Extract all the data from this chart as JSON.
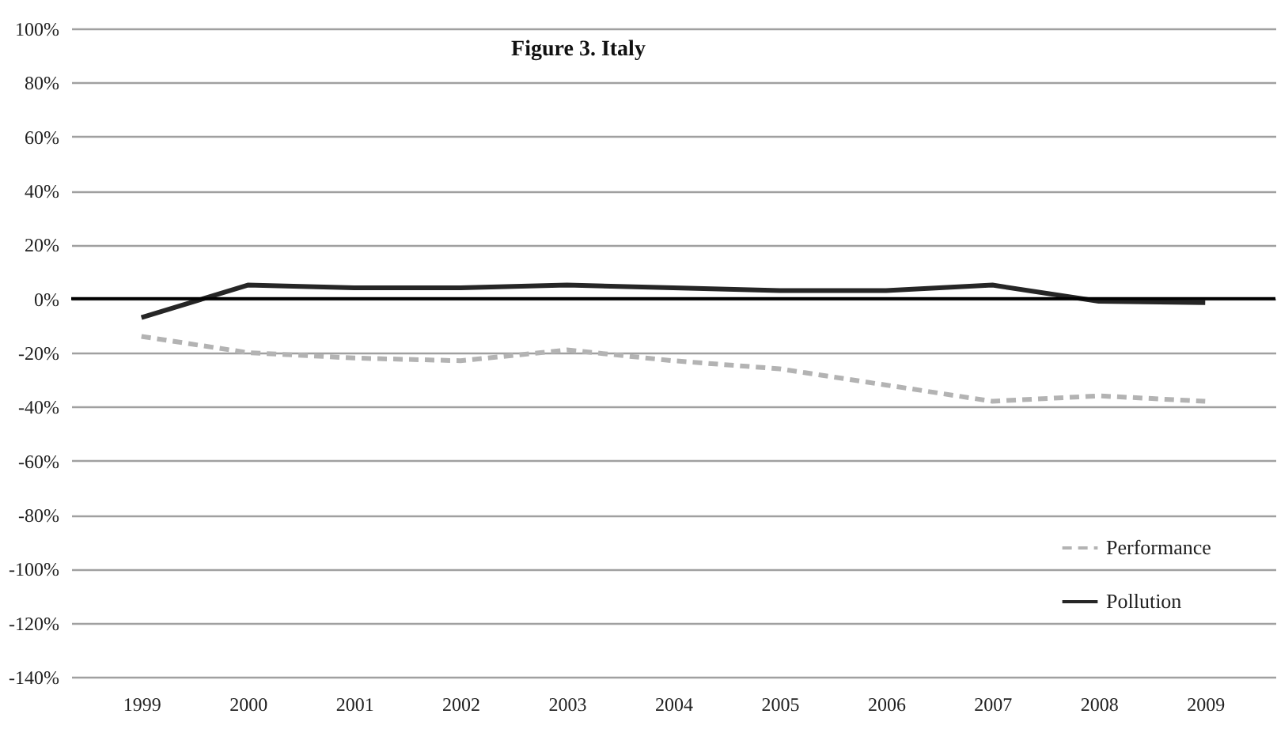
{
  "chart_data": {
    "type": "line",
    "title": "Figure 3. Italy",
    "categories": [
      "1999",
      "2000",
      "2001",
      "2002",
      "2003",
      "2004",
      "2005",
      "2006",
      "2007",
      "2008",
      "2009"
    ],
    "series": [
      {
        "name": "Performance",
        "color": "#b3b3b3",
        "line_style": "dashed",
        "values": [
          -14,
          -20,
          -22,
          -23,
          -19,
          -23,
          -26,
          -32,
          -38,
          -36,
          -38
        ]
      },
      {
        "name": "Pollution",
        "color": "#262626",
        "line_style": "solid",
        "values": [
          -7,
          5,
          4,
          4,
          5,
          4,
          3,
          3,
          5,
          -1,
          -1.5
        ]
      }
    ],
    "ylim": [
      -140,
      100
    ],
    "yticks": [
      {
        "value": -140,
        "label": "-140%"
      },
      {
        "value": -120,
        "label": "-120%"
      },
      {
        "value": -100,
        "label": "-100%"
      },
      {
        "value": -80,
        "label": "-80%"
      },
      {
        "value": -60,
        "label": "-60%"
      },
      {
        "value": -40,
        "label": "-40%"
      },
      {
        "value": -20,
        "label": "-20%"
      },
      {
        "value": 0,
        "label": "0%"
      },
      {
        "value": 20,
        "label": "20%"
      },
      {
        "value": 40,
        "label": "40%"
      },
      {
        "value": 60,
        "label": "60%"
      },
      {
        "value": 80,
        "label": "80%"
      },
      {
        "value": 100,
        "label": "100%"
      }
    ],
    "ref_lines": [
      {
        "axis": "y",
        "value": 0,
        "color": "#000000"
      }
    ],
    "grid": "y",
    "legend": "bottom right",
    "marker": "none"
  }
}
